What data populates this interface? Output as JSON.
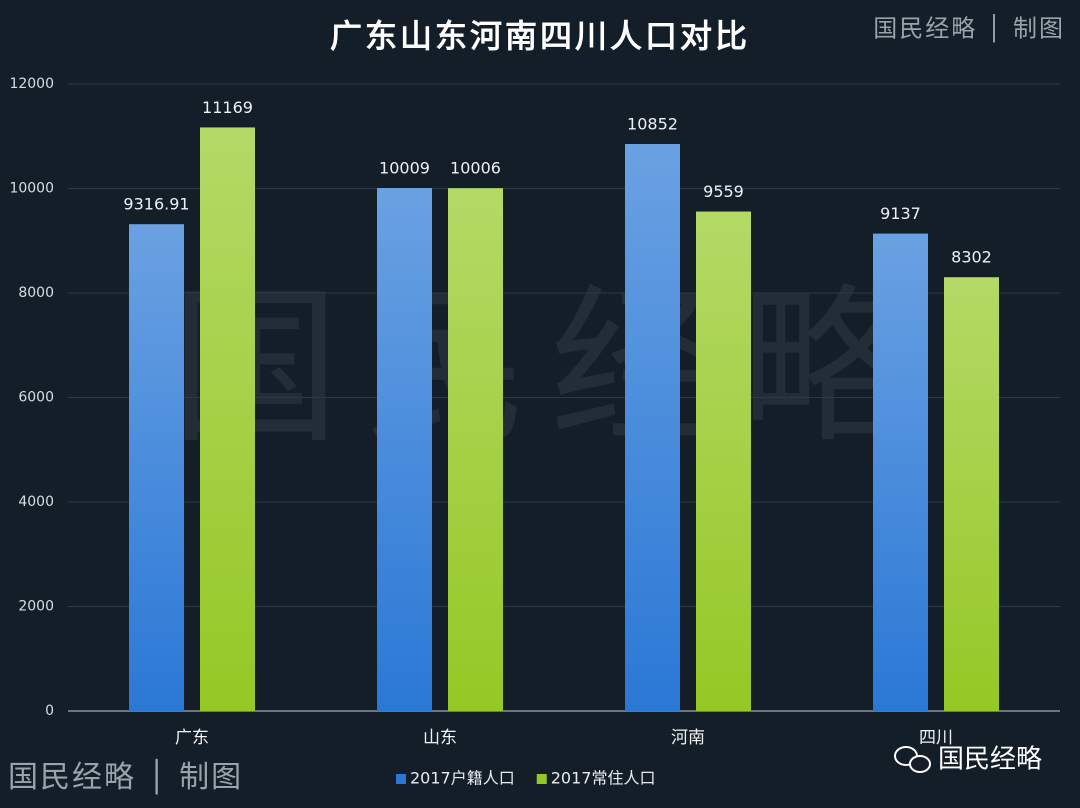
{
  "watermark_credit": "国民经略 │ 制图",
  "watermark_brand": "国民经略",
  "chart_data": {
    "type": "bar",
    "title": "广东山东河南四川人口对比",
    "categories": [
      "广东",
      "山东",
      "河南",
      "四川"
    ],
    "series": [
      {
        "name": "2017户籍人口",
        "color": "#2a78d6",
        "values": [
          9316.91,
          10009,
          10852,
          9137
        ]
      },
      {
        "name": "2017常住人口",
        "color": "#95c825",
        "values": [
          11169,
          10006,
          9559,
          8302
        ]
      }
    ],
    "ylim": [
      0,
      12000
    ],
    "yticks": [
      0,
      2000,
      4000,
      6000,
      8000,
      10000,
      12000
    ],
    "grid": true,
    "legend": "bottom"
  }
}
